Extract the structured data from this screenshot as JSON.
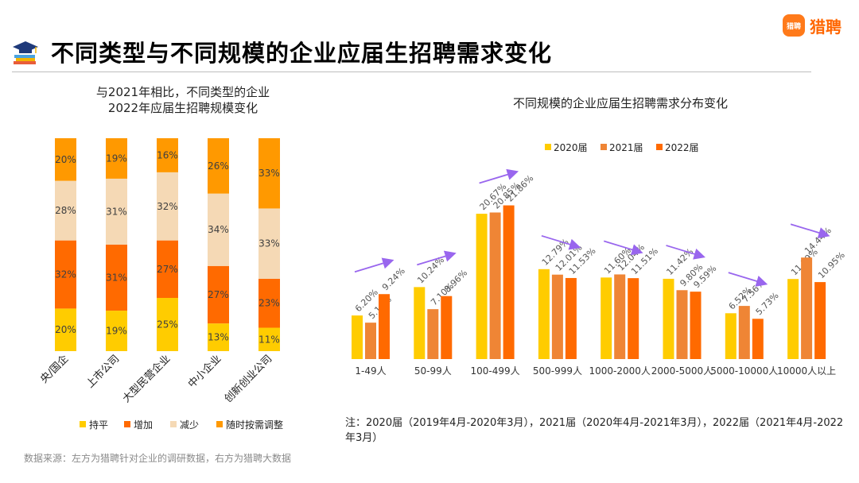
{
  "header": {
    "title": "不同类型与不同规模的企业应届生招聘需求变化",
    "brand_logo_text": "猎聘",
    "brand_name": "猎聘",
    "brand_color": "#ff6600",
    "icon": "graduation-cap-books-icon"
  },
  "note": "注：2020届（2019年4月-2020年3月），2021届（2020年4月-2021年3月），2022届（2021年4月-2022年3月）",
  "source": "数据来源：左方为猎聘针对企业的调研数据，右方为猎聘大数据",
  "chart_data": [
    {
      "type": "bar",
      "stacked": true,
      "title_lines": [
        "与2021年相比，不同类型的企业",
        "2022年应届生招聘规模变化"
      ],
      "categories": [
        "央/国企",
        "上市公司",
        "大型民营企业",
        "中小企业",
        "创新创业公司"
      ],
      "series": [
        {
          "name": "持平",
          "color": "#ffcc00",
          "values": [
            20,
            19,
            25,
            13,
            11
          ]
        },
        {
          "name": "增加",
          "color": "#ff6a00",
          "values": [
            32,
            31,
            27,
            27,
            23
          ]
        },
        {
          "name": "减少",
          "color": "#f5d9b5",
          "values": [
            28,
            31,
            32,
            34,
            33
          ]
        },
        {
          "name": "随时按需调整",
          "color": "#ff9900",
          "values": [
            20,
            19,
            16,
            26,
            33
          ]
        }
      ],
      "value_suffix": "%",
      "legend": "bottom"
    },
    {
      "type": "bar",
      "title": "不同规模的企业应届生招聘需求分布变化",
      "categories": [
        "1-49人",
        "50-99人",
        "100-499人",
        "500-999人",
        "1000-2000人",
        "2000-5000人",
        "5000-10000人",
        "10000人以上"
      ],
      "series": [
        {
          "name": "2020届",
          "color": "#ffcc00",
          "values": [
            6.2,
            10.24,
            20.67,
            12.79,
            11.6,
            11.42,
            6.52,
            11.39
          ]
        },
        {
          "name": "2021届",
          "color": "#ef8535",
          "values": [
            5.18,
            7.1,
            20.85,
            12.01,
            12.04,
            9.8,
            7.56,
            14.44
          ]
        },
        {
          "name": "2022届",
          "color": "#ff6a00",
          "values": [
            9.24,
            8.96,
            21.86,
            11.53,
            11.51,
            9.59,
            5.73,
            10.95
          ]
        }
      ],
      "trend_arrows": [
        "up",
        "up",
        "up",
        "down",
        "down",
        "down",
        "down",
        "down"
      ],
      "arrow_color": "#9966ee",
      "value_suffix": "%",
      "legend": "top"
    }
  ]
}
